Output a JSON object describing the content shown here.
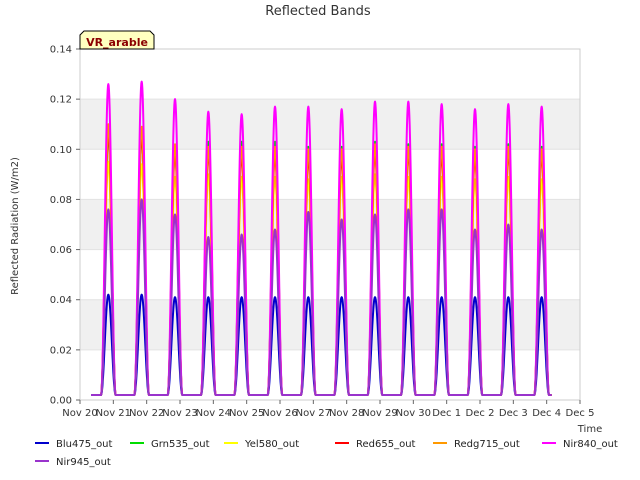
{
  "chart_data": {
    "type": "line",
    "title": "Reflected Bands",
    "xlabel": "Time",
    "ylabel": "Reflected Radiation (W/m2)",
    "badge": "VR_arable",
    "ylim": [
      0,
      0.14
    ],
    "yticks": [
      "0.00",
      "0.02",
      "0.04",
      "0.06",
      "0.08",
      "0.10",
      "0.12",
      "0.14"
    ],
    "xticks": [
      "Nov 20",
      "Nov 21",
      "Nov 22",
      "Nov 23",
      "Nov 24",
      "Nov 25",
      "Nov 26",
      "Nov 27",
      "Nov 28",
      "Nov 29",
      "Nov 30",
      "Dec 1",
      "Dec 2",
      "Dec 3",
      "Dec 4",
      "Dec 5"
    ],
    "x_range_days": [
      0,
      15
    ],
    "baseline": 0.002,
    "day_peaks_x": [
      0.85,
      1.85,
      2.85,
      3.85,
      4.85,
      5.85,
      6.85,
      7.85,
      8.85,
      9.85,
      10.85,
      11.85,
      12.85,
      13.85
    ],
    "series": [
      {
        "name": "Blu475_out",
        "color": "#0000cc",
        "peaks": [
          0.042,
          0.042,
          0.041,
          0.041,
          0.041,
          0.041,
          0.041,
          0.041,
          0.041,
          0.041,
          0.041,
          0.041,
          0.041,
          0.041
        ]
      },
      {
        "name": "Grn535_out",
        "color": "#00dd00",
        "peaks": [
          0.106,
          0.106,
          0.101,
          0.103,
          0.103,
          0.103,
          0.101,
          0.101,
          0.103,
          0.102,
          0.102,
          0.101,
          0.102,
          0.101
        ]
      },
      {
        "name": "Yel580_out",
        "color": "#ffff00",
        "peaks": [
          0.095,
          0.094,
          0.089,
          0.09,
          0.089,
          0.089,
          0.088,
          0.089,
          0.09,
          0.089,
          0.089,
          0.088,
          0.089,
          0.088
        ]
      },
      {
        "name": "Red655_out",
        "color": "#ff0000",
        "peaks": [
          0.107,
          0.106,
          0.099,
          0.099,
          0.098,
          0.098,
          0.097,
          0.097,
          0.099,
          0.099,
          0.098,
          0.097,
          0.099,
          0.098
        ]
      },
      {
        "name": "Redg715_out",
        "color": "#ff9900",
        "peaks": [
          0.11,
          0.109,
          0.102,
          0.101,
          0.101,
          0.101,
          0.1,
          0.1,
          0.102,
          0.101,
          0.101,
          0.1,
          0.101,
          0.1
        ]
      },
      {
        "name": "Nir840_out",
        "color": "#ff00ff",
        "peaks": [
          0.126,
          0.127,
          0.12,
          0.115,
          0.114,
          0.117,
          0.117,
          0.116,
          0.119,
          0.119,
          0.118,
          0.116,
          0.118,
          0.117
        ]
      },
      {
        "name": "Nir945_out",
        "color": "#9933cc",
        "peaks": [
          0.076,
          0.08,
          0.074,
          0.065,
          0.066,
          0.068,
          0.075,
          0.072,
          0.074,
          0.076,
          0.076,
          0.068,
          0.07,
          0.068
        ]
      }
    ]
  }
}
